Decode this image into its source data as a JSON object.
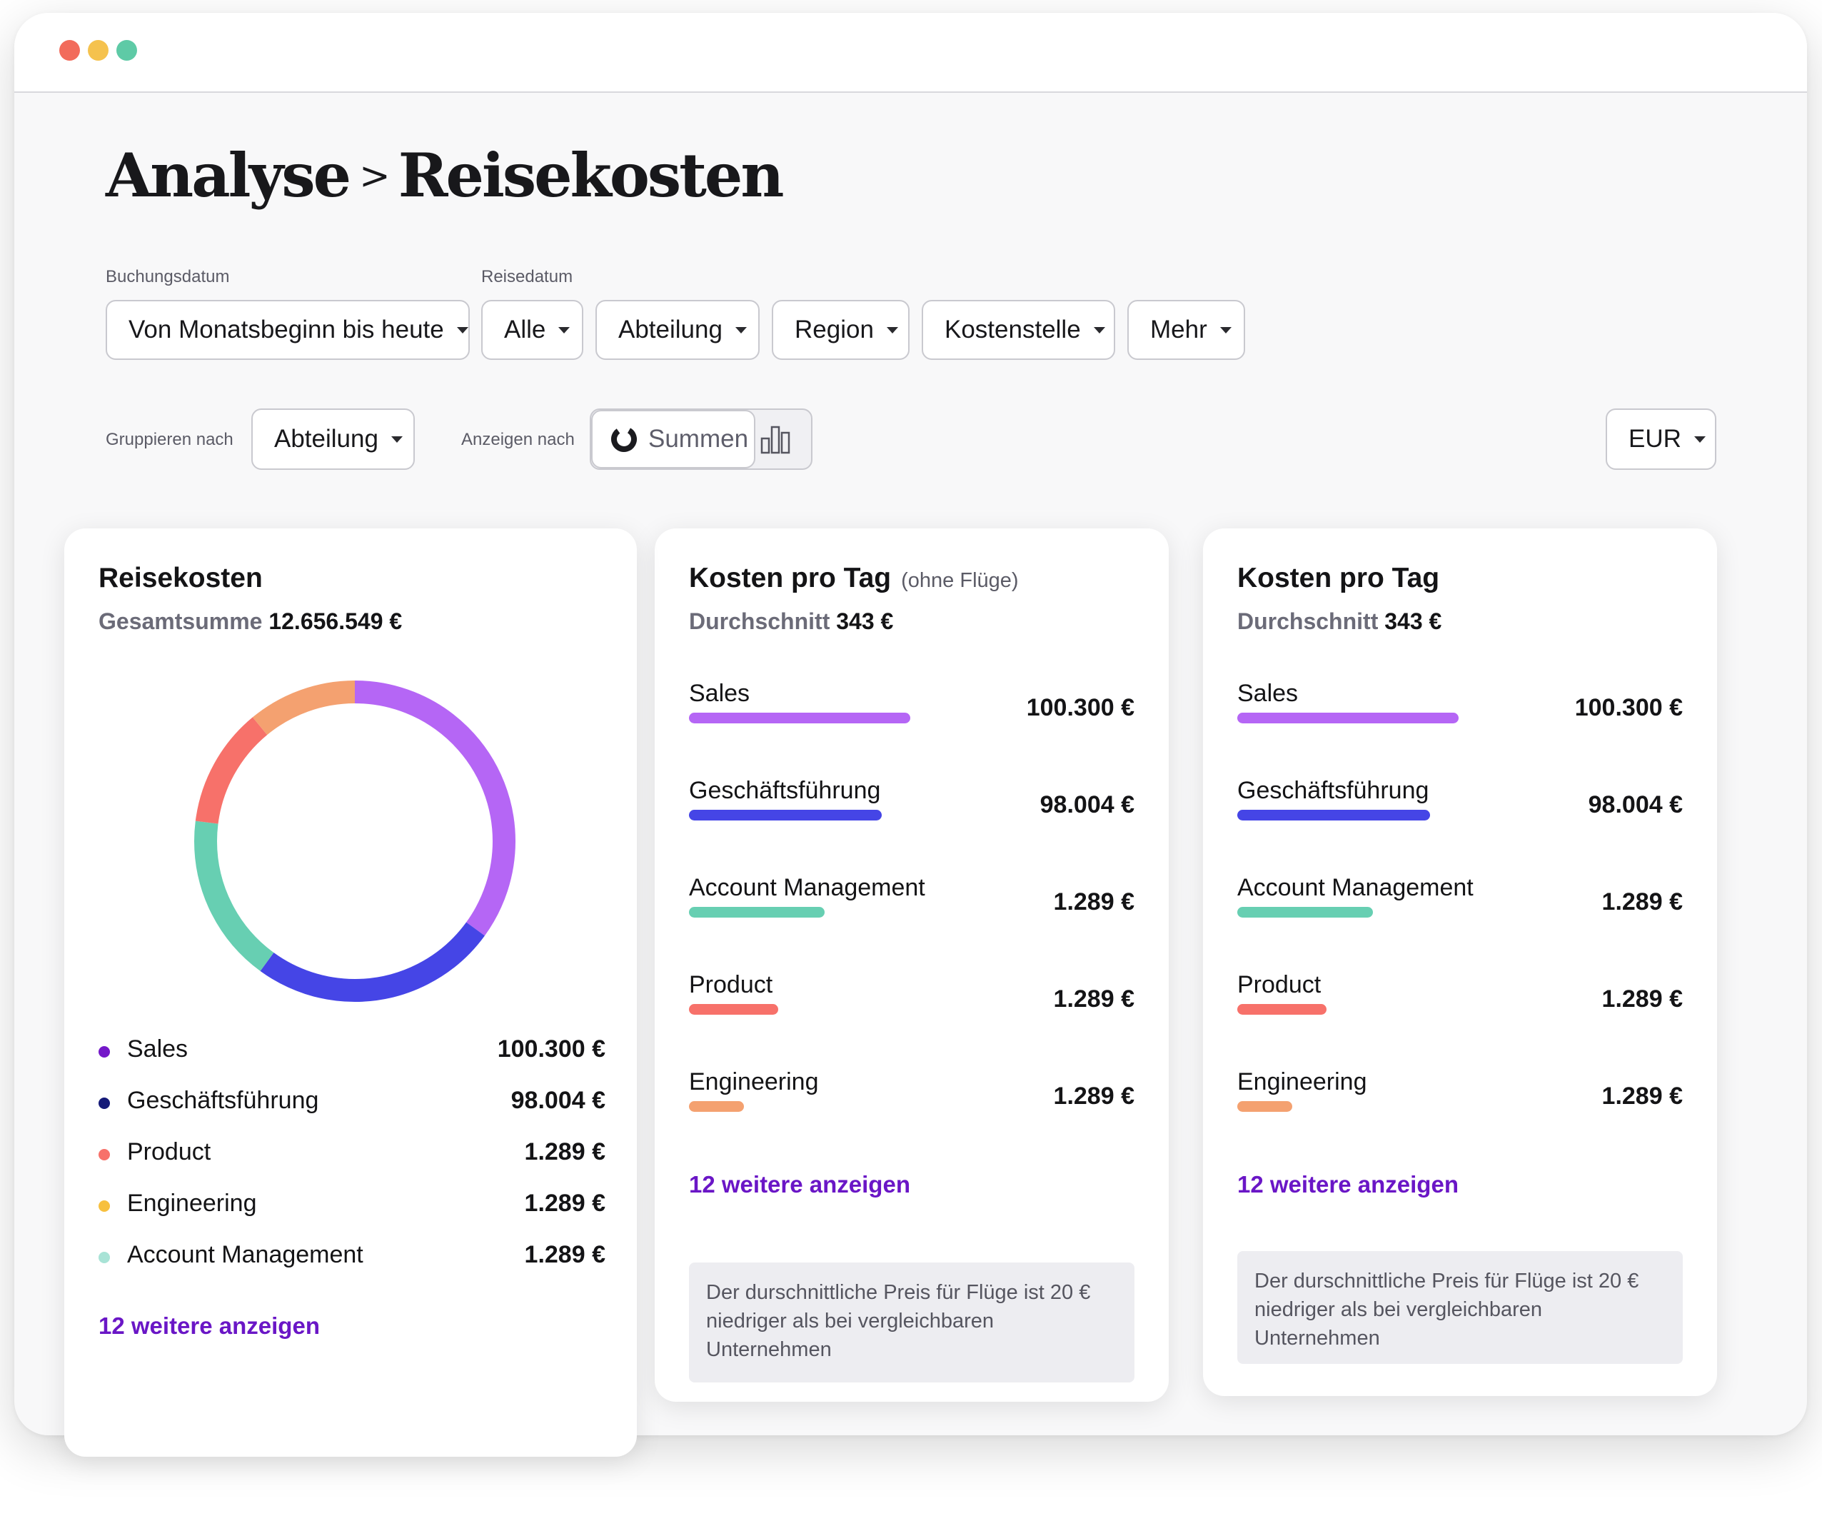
{
  "window": {
    "controls": [
      {
        "name": "close",
        "color": "#f26b5b"
      },
      {
        "name": "minimize",
        "color": "#f5c24e"
      },
      {
        "name": "maximize",
        "color": "#5ecaa6"
      }
    ]
  },
  "page_title": {
    "parent": "Analyse",
    "separator": ">",
    "current": "Reisekosten"
  },
  "filters": {
    "booking_date_label": "Buchungsdatum",
    "travel_date_label": "Reisedatum",
    "booking_date_value": "Von Monatsbeginn bis heute",
    "travel_date_value": "Alle",
    "department": "Abteilung",
    "region": "Region",
    "cost_center": "Kostenstelle",
    "more": "Mehr"
  },
  "view_controls": {
    "group_by_label": "Gruppieren nach",
    "group_by_value": "Abteilung",
    "display_by_label": "Anzeigen nach",
    "display_options": [
      {
        "label": "Summen",
        "icon": "donut-chart-icon",
        "active": true
      },
      {
        "label": "",
        "icon": "bar-chart-icon",
        "active": false
      }
    ],
    "currency": "EUR"
  },
  "colors": {
    "sales": "#b566f5",
    "management": "#4545e6",
    "account_management": "#67cfb2",
    "product": "#f7716a",
    "engineering": "#f4a170",
    "link": "#6a16c6",
    "legend_sales": "#7418c9",
    "legend_management": "#151a78",
    "legend_product": "#f7716a",
    "legend_engineering": "#f7c03f",
    "legend_account_management": "#a8e3d6"
  },
  "cards": {
    "total": {
      "title": "Reisekosten",
      "subtitle_label": "Gesamtsumme",
      "subtitle_value": "12.656.549 €",
      "legend": [
        {
          "name": "Sales",
          "value": "100.300 €",
          "color": "#7418c9"
        },
        {
          "name": "Geschäftsführung",
          "value": "98.004 €",
          "color": "#151a78"
        },
        {
          "name": "Product",
          "value": "1.289 €",
          "color": "#f7716a"
        },
        {
          "name": "Engineering",
          "value": "1.289 €",
          "color": "#f7c03f"
        },
        {
          "name": "Account Management",
          "value": "1.289 €",
          "color": "#a8e3d6"
        }
      ],
      "more_link": "12 weitere anzeigen"
    },
    "per_day_no_flights": {
      "title": "Kosten pro Tag",
      "title_note": "(ohne Flüge)",
      "subtitle_label": "Durchschnitt",
      "subtitle_value": "343 €",
      "rows": [
        {
          "name": "Sales",
          "value": "100.300 €",
          "color": "#b566f5",
          "bar_fraction": 0.31
        },
        {
          "name": "Geschäftsführung",
          "value": "98.004 €",
          "color": "#4545e6",
          "bar_fraction": 0.27
        },
        {
          "name": "Account Management",
          "value": "1.289 €",
          "color": "#67cfb2",
          "bar_fraction": 0.19
        },
        {
          "name": "Product",
          "value": "1.289 €",
          "color": "#f7716a",
          "bar_fraction": 0.125
        },
        {
          "name": "Engineering",
          "value": "1.289 €",
          "color": "#f4a170",
          "bar_fraction": 0.077
        }
      ],
      "more_link": "12 weitere anzeigen",
      "info": "Der durschnittliche Preis für Flüge ist 20 € niedriger als bei vergleichbaren Unternehmen"
    },
    "per_day": {
      "title": "Kosten pro Tag",
      "subtitle_label": "Durchschnitt",
      "subtitle_value": "343 €",
      "rows": [
        {
          "name": "Sales",
          "value": "100.300 €",
          "color": "#b566f5",
          "bar_fraction": 0.31
        },
        {
          "name": "Geschäftsführung",
          "value": "98.004 €",
          "color": "#4545e6",
          "bar_fraction": 0.27
        },
        {
          "name": "Account Management",
          "value": "1.289 €",
          "color": "#67cfb2",
          "bar_fraction": 0.19
        },
        {
          "name": "Product",
          "value": "1.289 €",
          "color": "#f7716a",
          "bar_fraction": 0.125
        },
        {
          "name": "Engineering",
          "value": "1.289 €",
          "color": "#f4a170",
          "bar_fraction": 0.077
        }
      ],
      "more_link": "12 weitere anzeigen",
      "info": "Der durschnittliche Preis für Flüge ist 20 € niedriger als bei vergleichbaren Unternehmen"
    }
  },
  "donut_segments": [
    {
      "name": "Sales",
      "fraction": 0.35,
      "color": "#b566f5"
    },
    {
      "name": "Geschäftsführung",
      "fraction": 0.25,
      "color": "#4545e6"
    },
    {
      "name": "Account Management",
      "fraction": 0.17,
      "color": "#67cfb2"
    },
    {
      "name": "Product",
      "fraction": 0.12,
      "color": "#f7716a"
    },
    {
      "name": "Engineering",
      "fraction": 0.11,
      "color": "#f4a170"
    }
  ]
}
